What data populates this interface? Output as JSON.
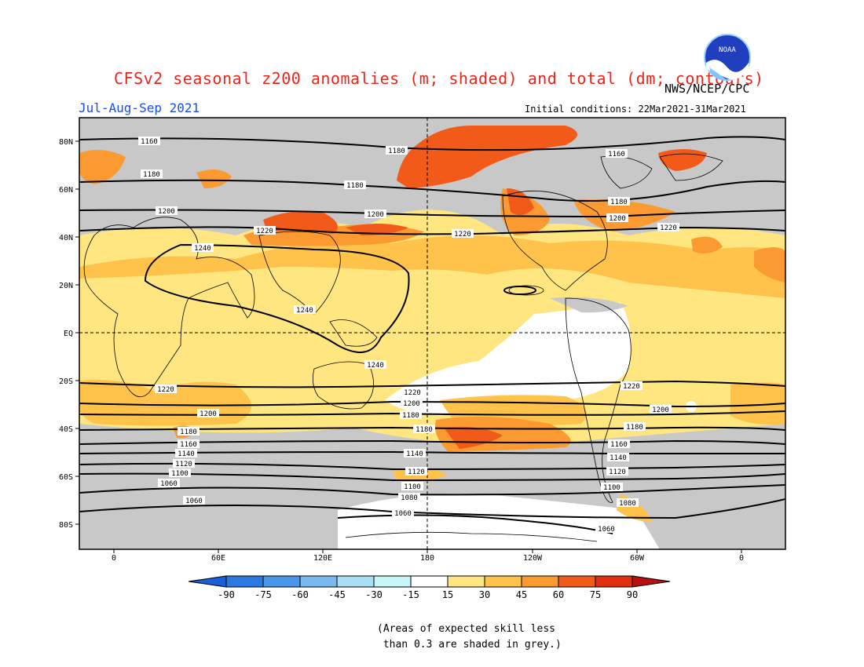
{
  "title": "CFSv2 seasonal z200 anomalies (m; shaded) and total (dm; contours)",
  "agency": "NWS/NCEP/CPC",
  "season": "Jul-Aug-Sep 2021",
  "initial_conditions": "Initial conditions: 22Mar2021-31Mar2021",
  "logo_text": "NOAA",
  "lat_labels": [
    "80N",
    "60N",
    "40N",
    "20N",
    "EQ",
    "20S",
    "40S",
    "60S",
    "80S"
  ],
  "lon_labels": [
    "0",
    "60E",
    "120E",
    "180",
    "120W",
    "60W",
    "0"
  ],
  "contour_labels": [
    "1160",
    "1180",
    "1200",
    "1220",
    "1240",
    "1240",
    "1240",
    "1220",
    "1220",
    "1200",
    "1200",
    "1180",
    "1180",
    "1180",
    "1160",
    "1160",
    "1140",
    "1140",
    "1120",
    "1120",
    "1100",
    "1100",
    "1080",
    "1080",
    "1060",
    "1060",
    "1060",
    "1160",
    "1180",
    "1200",
    "1220",
    "1200",
    "1180",
    "1160",
    "1140",
    "1120",
    "1100",
    "1080"
  ],
  "colorbar": {
    "ticks": [
      "-90",
      "-75",
      "-60",
      "-45",
      "-30",
      "-15",
      "15",
      "30",
      "45",
      "60",
      "75",
      "90"
    ],
    "colors": [
      "#1a5ed8",
      "#2c79e0",
      "#4a96ea",
      "#7ab8f0",
      "#a8dff2",
      "#c8f5f5",
      "#ffffff",
      "#ffe680",
      "#ffc24a",
      "#fa9a30",
      "#f25a1a",
      "#e02e10",
      "#b51010"
    ]
  },
  "note": "(Areas of expected skill less\n than 0.3 are shaded in grey.)"
}
